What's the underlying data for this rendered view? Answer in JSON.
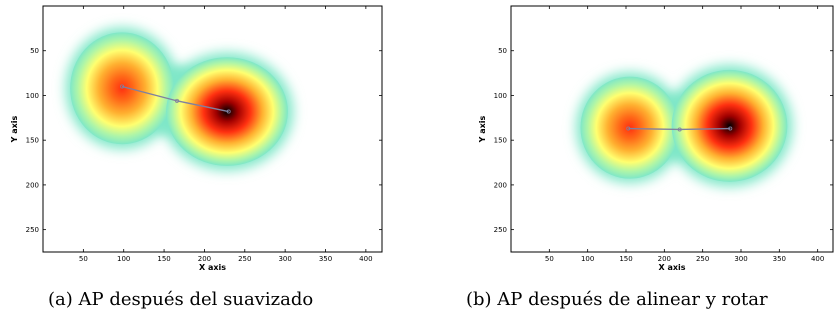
{
  "figures": [
    {
      "id": "a",
      "caption": "(a) AP después del suavizado",
      "xlabel": "X axis",
      "ylabel": "Y axis",
      "xticks": [
        50,
        100,
        150,
        200,
        250,
        300,
        350,
        400
      ],
      "yticks": [
        50,
        100,
        150,
        200,
        250
      ],
      "xlim": [
        0,
        420
      ],
      "ylim": [
        0,
        275
      ],
      "blobs": [
        {
          "cx": 98,
          "cy": 92,
          "rx": 70,
          "ry": 68,
          "intensity": 0.72
        },
        {
          "cx": 228,
          "cy": 118,
          "rx": 82,
          "ry": 66,
          "intensity": 1.0
        }
      ],
      "path": [
        [
          98,
          90
        ],
        [
          166,
          106
        ],
        [
          230,
          118
        ]
      ]
    },
    {
      "id": "b",
      "caption": "(b) AP después de alinear y rotar",
      "xlabel": "X axis",
      "ylabel": "Y axis",
      "xticks": [
        50,
        100,
        150,
        200,
        250,
        300,
        350,
        400
      ],
      "yticks": [
        50,
        100,
        150,
        200,
        250
      ],
      "xlim": [
        0,
        420
      ],
      "ylim": [
        0,
        275
      ],
      "blobs": [
        {
          "cx": 155,
          "cy": 136,
          "rx": 70,
          "ry": 62,
          "intensity": 0.7
        },
        {
          "cx": 285,
          "cy": 134,
          "rx": 82,
          "ry": 68,
          "intensity": 1.0
        }
      ],
      "path": [
        [
          153,
          137
        ],
        [
          220,
          138
        ],
        [
          286,
          137
        ]
      ]
    }
  ],
  "colors": {
    "halo": "#7fe7c8",
    "colormap": [
      "#7fe7c8",
      "#aef5a8",
      "#ffff70",
      "#ffb030",
      "#ff3010",
      "#a00000",
      "#000000"
    ],
    "path_line": "#8080a0"
  }
}
